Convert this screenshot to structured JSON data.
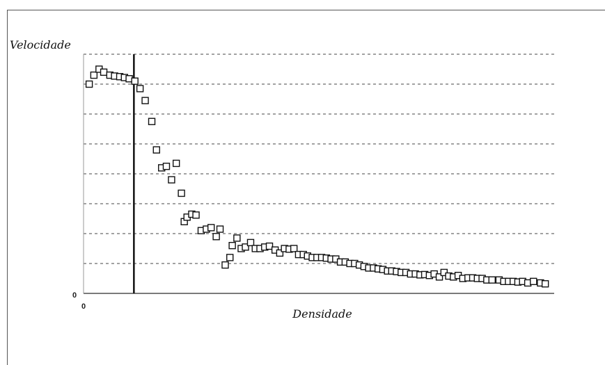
{
  "chart_data": {
    "type": "scatter",
    "title": "",
    "xlabel": "Densidade",
    "ylabel": "Velocidade",
    "x_tick_label": "0",
    "y_tick_label": "0",
    "xlim": [
      0,
      100
    ],
    "ylim": [
      0,
      8
    ],
    "grid": true,
    "vertical_marker_x": 10.7,
    "series": [
      {
        "x": [
          1.2,
          2.2,
          3.3,
          4.3,
          5.6,
          6.6,
          7.7,
          8.7,
          9.7,
          10.9,
          12.0,
          13.1,
          14.5,
          15.5,
          16.6,
          17.6,
          18.7,
          19.7,
          20.8,
          21.4,
          22.0,
          23.0,
          23.9,
          25.0,
          26.1,
          27.1,
          28.2,
          29.0,
          30.1,
          31.1,
          31.6,
          32.6,
          33.5,
          34.4,
          35.5,
          36.5,
          37.5,
          38.5,
          39.5,
          40.7,
          41.7,
          42.7,
          43.7,
          44.7,
          45.7,
          46.7,
          47.6,
          48.6,
          49.6,
          50.6,
          51.6,
          52.6,
          53.6,
          54.6,
          55.6,
          56.6,
          57.6,
          58.6,
          59.6,
          60.6,
          61.6,
          62.6,
          63.6,
          64.6,
          65.5,
          66.5,
          67.5,
          68.5,
          69.5,
          70.5,
          71.5,
          72.5,
          73.5,
          74.5,
          75.6,
          76.6,
          77.6,
          78.6,
          79.6,
          80.6,
          81.7,
          82.7,
          83.7,
          84.7,
          85.7,
          86.8,
          88.3,
          89.3,
          90.3,
          91.3,
          92.3,
          93.3,
          94.4,
          95.6,
          97.1,
          98.1
        ],
        "y": [
          7.0,
          7.3,
          7.5,
          7.4,
          7.3,
          7.27,
          7.25,
          7.22,
          7.18,
          7.1,
          6.85,
          6.45,
          5.75,
          4.8,
          4.2,
          4.25,
          3.8,
          4.35,
          3.35,
          2.4,
          2.55,
          2.65,
          2.62,
          2.1,
          2.15,
          2.2,
          1.9,
          2.15,
          0.95,
          1.2,
          1.6,
          1.85,
          1.5,
          1.55,
          1.7,
          1.5,
          1.5,
          1.55,
          1.58,
          1.45,
          1.35,
          1.5,
          1.48,
          1.5,
          1.3,
          1.3,
          1.25,
          1.2,
          1.2,
          1.2,
          1.18,
          1.15,
          1.15,
          1.05,
          1.05,
          1.0,
          1.0,
          0.95,
          0.9,
          0.85,
          0.85,
          0.82,
          0.8,
          0.75,
          0.75,
          0.73,
          0.7,
          0.7,
          0.65,
          0.65,
          0.62,
          0.63,
          0.6,
          0.65,
          0.55,
          0.7,
          0.58,
          0.55,
          0.6,
          0.5,
          0.52,
          0.52,
          0.5,
          0.5,
          0.45,
          0.45,
          0.45,
          0.4,
          0.4,
          0.4,
          0.38,
          0.4,
          0.35,
          0.4,
          0.35,
          0.32
        ]
      }
    ]
  }
}
